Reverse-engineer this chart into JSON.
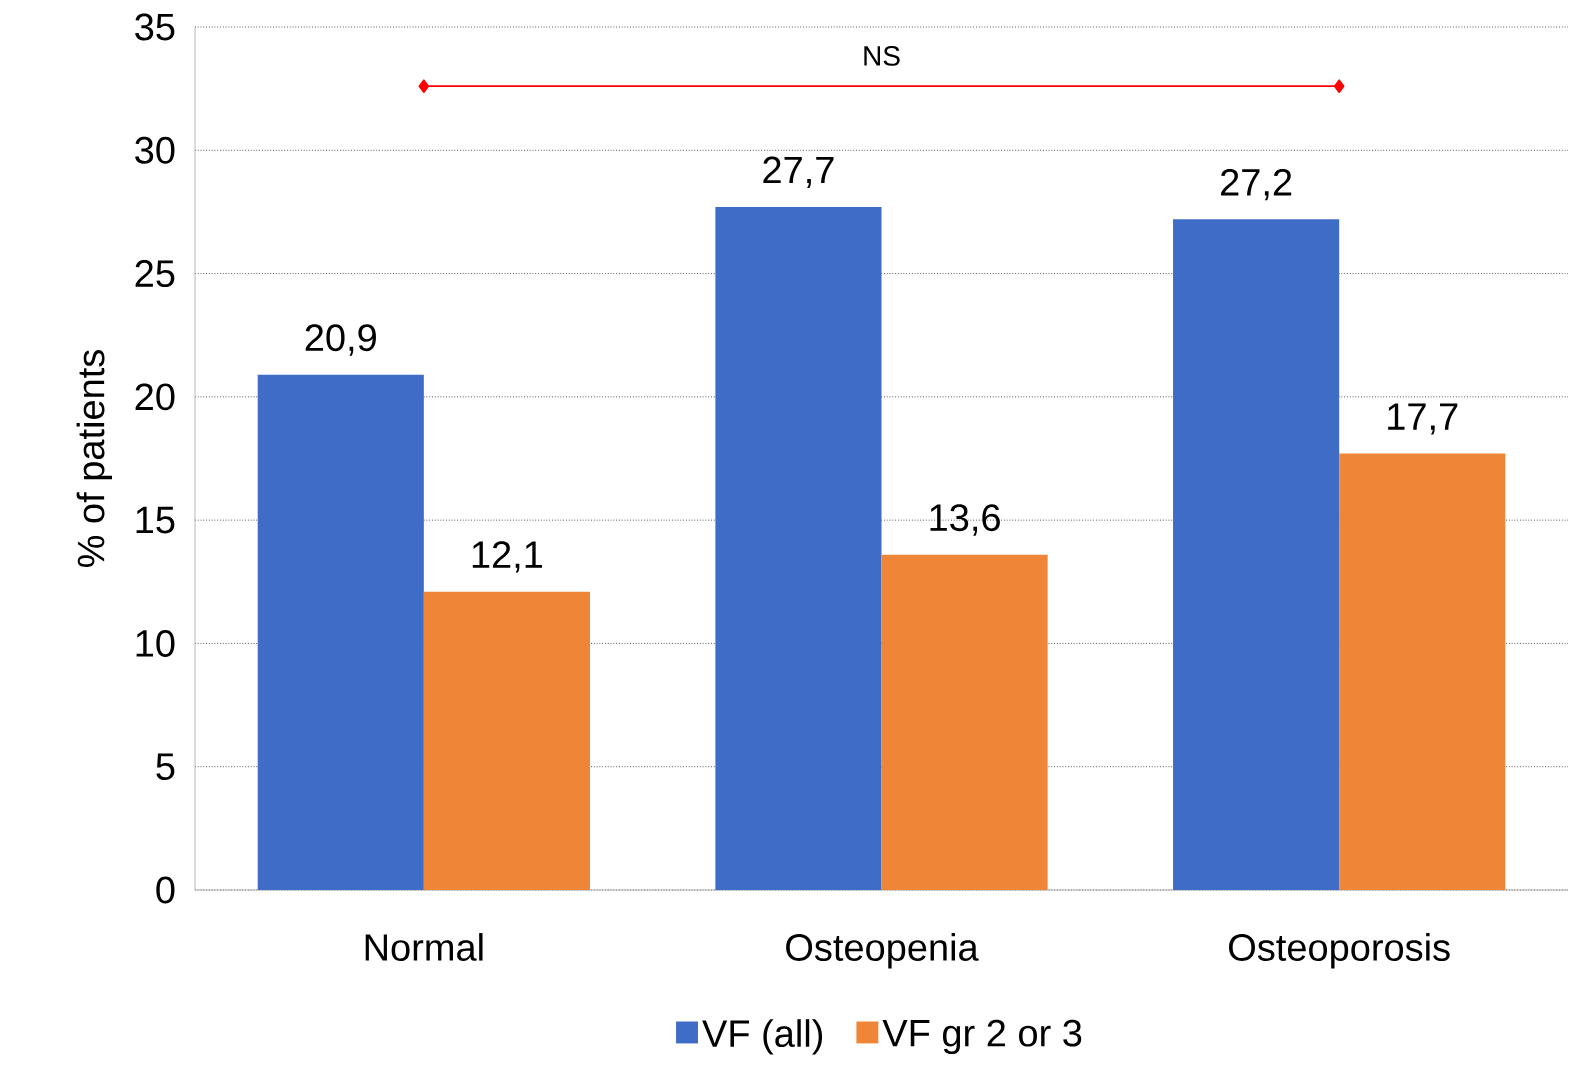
{
  "chart_data": {
    "type": "bar",
    "ylabel": "% of patients",
    "categories": [
      "Normal",
      "Osteopenia",
      "Osteoporosis"
    ],
    "series": [
      {
        "name": "VF (all)",
        "color": "#3f6cc6",
        "values": [
          20.9,
          27.7,
          27.2
        ],
        "value_labels": [
          "20,9",
          "27,7",
          "27,2"
        ]
      },
      {
        "name": "VF gr 2 or 3",
        "color": "#ef8537",
        "values": [
          12.1,
          13.6,
          17.7
        ],
        "value_labels": [
          "12,1",
          "13,6",
          "17,7"
        ]
      },
      {
        "type": "line",
        "color": "#ff0000",
        "values": [
          32.6,
          null,
          32.6
        ],
        "marker": "diamond"
      }
    ],
    "ylim": [
      0,
      35
    ],
    "yticks": [
      0,
      5,
      10,
      15,
      20,
      25,
      30,
      35
    ],
    "grid": "y",
    "legend": "bottom",
    "annotations": [
      "NS"
    ]
  }
}
